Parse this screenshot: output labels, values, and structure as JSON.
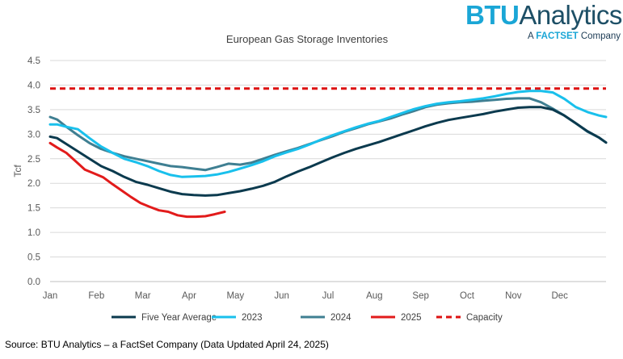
{
  "logo": {
    "brand": "BTU",
    "name": "Analytics",
    "sub_prefix": "A",
    "sub_brand": "FACTSET",
    "sub_suffix": "Company"
  },
  "source": "Source: BTU Analytics – a FactSet Company (Data Updated April 24, 2025)",
  "colors": {
    "five_year": "#0b3a4e",
    "y2023": "#19c0ec",
    "y2024": "#3f7f92",
    "y2025": "#e21b1b",
    "capacity": "#dd1111",
    "grid": "#d9d9d9"
  },
  "chart_data": {
    "type": "line",
    "title": "European Gas Storage Inventories",
    "xlabel": "",
    "ylabel": "Tcf",
    "ylim": [
      0,
      4.5
    ],
    "yticks": [
      "0.0",
      "0.5",
      "1.0",
      "1.5",
      "2.0",
      "2.5",
      "3.0",
      "3.5",
      "4.0",
      "4.5"
    ],
    "months": [
      "Jan",
      "Feb",
      "Mar",
      "Apr",
      "May",
      "Jun",
      "Jul",
      "Aug",
      "Sep",
      "Oct",
      "Nov",
      "Dec"
    ],
    "legend_position": "bottom",
    "series": [
      {
        "key": "five_year",
        "name": "Five Year Average",
        "style": "solid",
        "x": [
          0,
          0.15,
          0.35,
          0.6,
          0.85,
          1.1,
          1.35,
          1.6,
          1.85,
          2.1,
          2.35,
          2.6,
          2.85,
          3.1,
          3.35,
          3.6,
          3.85,
          4.1,
          4.35,
          4.6,
          4.85,
          5.1,
          5.35,
          5.6,
          5.85,
          6.1,
          6.35,
          6.6,
          6.85,
          7.1,
          7.35,
          7.6,
          7.85,
          8.1,
          8.35,
          8.6,
          8.85,
          9.1,
          9.35,
          9.6,
          9.85,
          10.1,
          10.35,
          10.6,
          10.85,
          11.1,
          11.35,
          11.6,
          11.85,
          12
        ],
        "y": [
          2.95,
          2.92,
          2.8,
          2.65,
          2.5,
          2.35,
          2.25,
          2.13,
          2.03,
          1.97,
          1.9,
          1.83,
          1.78,
          1.76,
          1.75,
          1.76,
          1.8,
          1.84,
          1.89,
          1.95,
          2.03,
          2.14,
          2.24,
          2.33,
          2.43,
          2.53,
          2.62,
          2.7,
          2.77,
          2.84,
          2.92,
          3.0,
          3.08,
          3.16,
          3.23,
          3.29,
          3.33,
          3.37,
          3.41,
          3.46,
          3.5,
          3.54,
          3.55,
          3.55,
          3.5,
          3.38,
          3.22,
          3.06,
          2.93,
          2.83
        ]
      },
      {
        "key": "y2023",
        "name": "2023",
        "style": "solid",
        "x": [
          0,
          0.15,
          0.35,
          0.6,
          0.85,
          1.1,
          1.35,
          1.6,
          1.85,
          2.1,
          2.35,
          2.6,
          2.85,
          3.1,
          3.35,
          3.6,
          3.85,
          4.1,
          4.35,
          4.6,
          4.85,
          5.1,
          5.35,
          5.6,
          5.85,
          6.1,
          6.35,
          6.6,
          6.85,
          7.1,
          7.35,
          7.6,
          7.85,
          8.1,
          8.35,
          8.6,
          8.85,
          9.1,
          9.35,
          9.6,
          9.85,
          10.1,
          10.35,
          10.6,
          10.85,
          11.1,
          11.35,
          11.6,
          11.85,
          12
        ],
        "y": [
          3.2,
          3.2,
          3.15,
          3.1,
          2.92,
          2.75,
          2.62,
          2.5,
          2.43,
          2.35,
          2.25,
          2.17,
          2.13,
          2.14,
          2.15,
          2.18,
          2.23,
          2.3,
          2.37,
          2.45,
          2.55,
          2.63,
          2.7,
          2.79,
          2.89,
          2.98,
          3.06,
          3.14,
          3.21,
          3.27,
          3.35,
          3.43,
          3.51,
          3.57,
          3.62,
          3.65,
          3.67,
          3.7,
          3.73,
          3.77,
          3.82,
          3.86,
          3.88,
          3.88,
          3.85,
          3.72,
          3.55,
          3.45,
          3.38,
          3.35
        ]
      },
      {
        "key": "y2024",
        "name": "2024",
        "style": "solid",
        "x": [
          0,
          0.15,
          0.35,
          0.6,
          0.85,
          1.1,
          1.35,
          1.6,
          1.85,
          2.1,
          2.35,
          2.6,
          2.85,
          3.1,
          3.35,
          3.6,
          3.85,
          4.1,
          4.35,
          4.6,
          4.85,
          5.1,
          5.35,
          5.6,
          5.85,
          6.1,
          6.35,
          6.6,
          6.85,
          7.1,
          7.35,
          7.6,
          7.85,
          8.1,
          8.35,
          8.6,
          8.85,
          9.1,
          9.35,
          9.6,
          9.85,
          10.1,
          10.35,
          10.6,
          10.85,
          11.1,
          11.35,
          11.6,
          11.85,
          12
        ],
        "y": [
          3.35,
          3.3,
          3.15,
          2.98,
          2.82,
          2.7,
          2.62,
          2.55,
          2.5,
          2.45,
          2.4,
          2.35,
          2.33,
          2.3,
          2.27,
          2.33,
          2.4,
          2.38,
          2.42,
          2.5,
          2.58,
          2.65,
          2.72,
          2.8,
          2.88,
          2.96,
          3.05,
          3.12,
          3.2,
          3.26,
          3.32,
          3.4,
          3.47,
          3.55,
          3.6,
          3.63,
          3.65,
          3.66,
          3.68,
          3.7,
          3.72,
          3.73,
          3.73,
          3.65,
          3.52,
          3.38,
          3.22,
          3.05,
          2.93,
          2.83
        ]
      },
      {
        "key": "y2025",
        "name": "2025",
        "style": "solid",
        "x": [
          0,
          0.15,
          0.35,
          0.55,
          0.75,
          0.95,
          1.15,
          1.35,
          1.55,
          1.75,
          1.95,
          2.15,
          2.35,
          2.55,
          2.75,
          2.95,
          3.15,
          3.35,
          3.55,
          3.77
        ],
        "y": [
          2.82,
          2.73,
          2.62,
          2.45,
          2.28,
          2.2,
          2.12,
          1.98,
          1.85,
          1.72,
          1.6,
          1.52,
          1.45,
          1.42,
          1.35,
          1.32,
          1.32,
          1.33,
          1.37,
          1.42
        ]
      },
      {
        "key": "capacity",
        "name": "Capacity",
        "style": "dashed",
        "x": [
          0,
          12
        ],
        "y": [
          3.93,
          3.93
        ]
      }
    ]
  }
}
